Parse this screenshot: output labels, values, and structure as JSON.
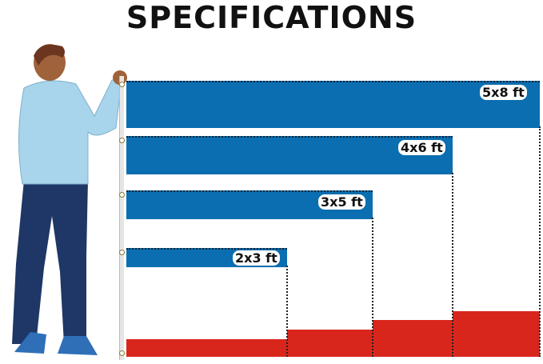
{
  "title": "SPECIFICATIONS",
  "sizes": [
    {
      "label": "5x8 ft"
    },
    {
      "label": "4x6 ft"
    },
    {
      "label": "3x5 ft"
    },
    {
      "label": "2x3 ft"
    }
  ],
  "colors": {
    "blue": "#0a6eb0",
    "red": "#d9261c",
    "shirt": "#a8d4ec",
    "pants": "#1f3766"
  },
  "illustration": "person-holding-flag-pole"
}
